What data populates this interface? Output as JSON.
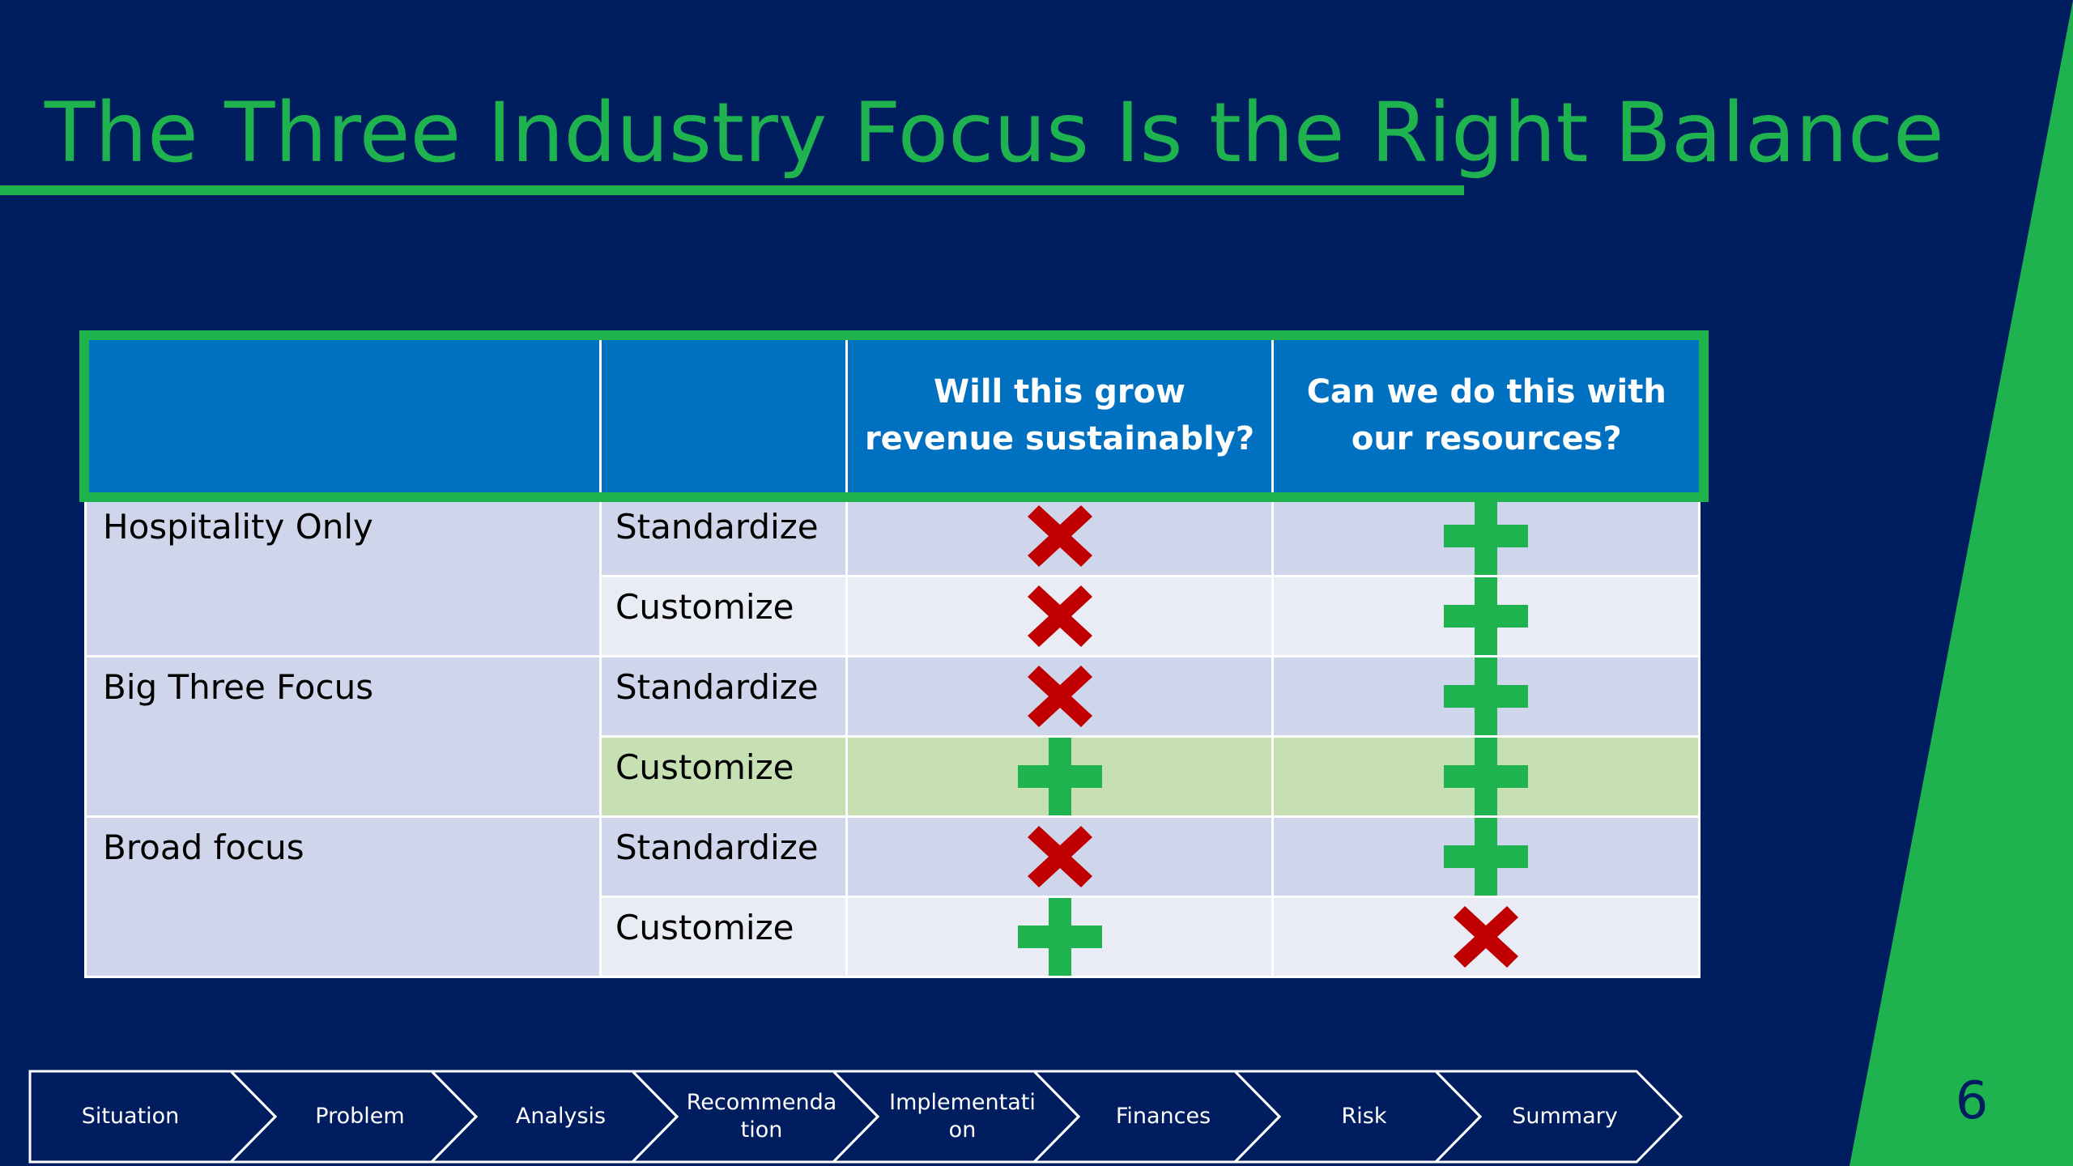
{
  "slide": {
    "title": "The Three Industry Focus Is the Right Balance",
    "page_number": "6",
    "colors": {
      "background": "#001d5f",
      "accent_green": "#1fb350",
      "header_blue": "#0070c0",
      "row_alt": "#cfd5ea",
      "row_plain": "#e9ebf5",
      "row_highlight": "#c6e0b4",
      "cross_red": "#c00000",
      "plus_green": "#1fb350"
    }
  },
  "table": {
    "headers": [
      "",
      "",
      "Will this grow revenue sustainably?",
      "Can we do this with our resources?"
    ],
    "groups": [
      {
        "label": "Hospitality Only",
        "rows": [
          {
            "approach": "Standardize",
            "grow_revenue": "cross-icon",
            "resources": "plus-icon"
          },
          {
            "approach": "Customize",
            "grow_revenue": "cross-icon",
            "resources": "plus-icon"
          }
        ]
      },
      {
        "label": "Big Three Focus",
        "rows": [
          {
            "approach": "Standardize",
            "grow_revenue": "cross-icon",
            "resources": "plus-icon"
          },
          {
            "approach": "Customize",
            "grow_revenue": "plus-icon",
            "resources": "plus-icon",
            "highlighted": true
          }
        ]
      },
      {
        "label": "Broad focus",
        "rows": [
          {
            "approach": "Standardize",
            "grow_revenue": "cross-icon",
            "resources": "plus-icon"
          },
          {
            "approach": "Customize",
            "grow_revenue": "plus-icon",
            "resources": "cross-icon"
          }
        ]
      }
    ]
  },
  "nav": {
    "steps": [
      {
        "lines": [
          "Situation"
        ]
      },
      {
        "lines": [
          "Problem"
        ]
      },
      {
        "lines": [
          "Analysis"
        ]
      },
      {
        "lines": [
          "Recommenda",
          "tion"
        ]
      },
      {
        "lines": [
          "Implementati",
          "on"
        ]
      },
      {
        "lines": [
          "Finances"
        ]
      },
      {
        "lines": [
          "Risk"
        ]
      },
      {
        "lines": [
          "Summary"
        ]
      }
    ]
  }
}
